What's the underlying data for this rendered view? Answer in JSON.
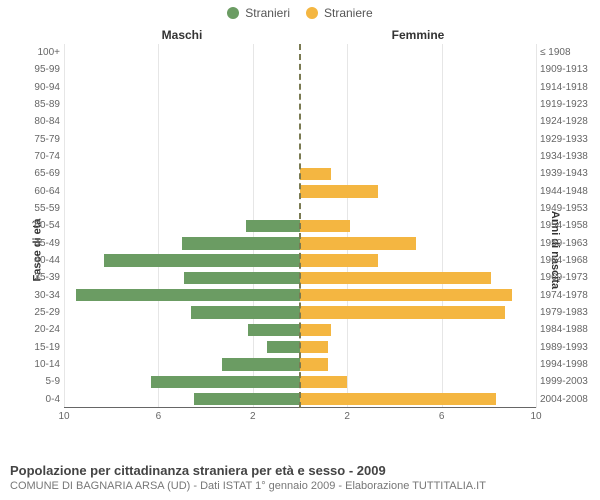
{
  "chart": {
    "type": "population-pyramid",
    "legend": {
      "male_label": "Stranieri",
      "female_label": "Straniere"
    },
    "column_headers": {
      "left": "Maschi",
      "right": "Femmine"
    },
    "axes": {
      "left_title": "Fasce di età",
      "right_title": "Anni di nascita",
      "x_max": 10,
      "x_ticks": [
        10,
        6,
        2,
        2,
        6,
        10
      ]
    },
    "colors": {
      "male_bar": "#6b9c63",
      "female_bar": "#f4b641",
      "grid": "#e6e6e6",
      "center_line": "#7a7a52",
      "background": "#ffffff"
    },
    "age_labels": [
      "100+",
      "95-99",
      "90-94",
      "85-89",
      "80-84",
      "75-79",
      "70-74",
      "65-69",
      "60-64",
      "55-59",
      "50-54",
      "45-49",
      "40-44",
      "35-39",
      "30-34",
      "25-29",
      "20-24",
      "15-19",
      "10-14",
      "5-9",
      "0-4"
    ],
    "birth_labels": [
      "≤ 1908",
      "1909-1913",
      "1914-1918",
      "1919-1923",
      "1924-1928",
      "1929-1933",
      "1934-1938",
      "1939-1943",
      "1944-1948",
      "1949-1953",
      "1954-1958",
      "1959-1963",
      "1964-1968",
      "1969-1973",
      "1974-1978",
      "1979-1983",
      "1984-1988",
      "1989-1993",
      "1994-1998",
      "1999-2003",
      "2004-2008"
    ],
    "male_values": [
      0,
      0,
      0,
      0,
      0,
      0,
      0,
      0,
      0,
      0,
      2.3,
      5.0,
      8.3,
      4.9,
      9.5,
      4.6,
      2.2,
      1.4,
      3.3,
      6.3,
      4.5
    ],
    "female_values": [
      0,
      0,
      0,
      0,
      0,
      0,
      0,
      1.3,
      3.3,
      0,
      2.1,
      4.9,
      3.3,
      8.1,
      9.0,
      8.7,
      1.3,
      1.2,
      1.2,
      2.0,
      8.3
    ],
    "bar_height_pct": 72,
    "fonts": {
      "legend_fontsize": 12,
      "header_fontsize": 12,
      "tick_fontsize": 10,
      "axis_title_fontsize": 11,
      "footer_title_fontsize": 13,
      "footer_sub_fontsize": 11
    }
  },
  "footer": {
    "title": "Popolazione per cittadinanza straniera per età e sesso - 2009",
    "subtitle": "COMUNE DI BAGNARIA ARSA (UD) - Dati ISTAT 1° gennaio 2009 - Elaborazione TUTTITALIA.IT"
  }
}
